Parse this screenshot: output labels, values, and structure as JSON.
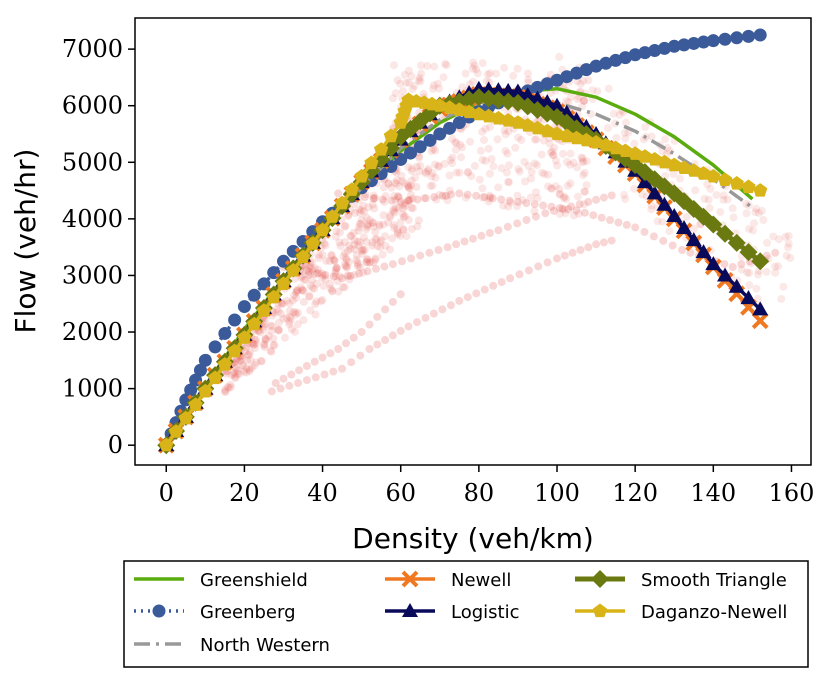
{
  "chart_data": {
    "type": "line",
    "xlabel": "Density (veh/km)",
    "ylabel": "Flow (veh/hr)",
    "xlim": [
      -8,
      165
    ],
    "ylim": [
      -350,
      7550
    ],
    "xticks": [
      0,
      20,
      40,
      60,
      80,
      100,
      120,
      140,
      160
    ],
    "yticks": [
      0,
      1000,
      2000,
      3000,
      4000,
      5000,
      6000,
      7000
    ],
    "scatter_color": "#e0463e",
    "series": [
      {
        "name": "Greenshield",
        "color": "#5aac0e",
        "style": "solid",
        "marker": "none",
        "x": [
          0,
          10,
          20,
          30,
          40,
          50,
          60,
          70,
          80,
          90,
          100,
          110,
          120,
          130,
          140,
          150
        ],
        "y": [
          0,
          1050,
          2050,
          2950,
          3800,
          4550,
          5200,
          5700,
          6050,
          6250,
          6300,
          6150,
          5850,
          5450,
          4950,
          4350
        ]
      },
      {
        "name": "Greenberg",
        "color": "#3a5a9a",
        "style": "dotted",
        "marker": "circle",
        "x": [
          0,
          5,
          10,
          20,
          30,
          40,
          50,
          60,
          70,
          80,
          90,
          100,
          110,
          120,
          130,
          140,
          152
        ],
        "y": [
          0,
          800,
          1500,
          2450,
          3250,
          3950,
          4550,
          5050,
          5500,
          5900,
          6200,
          6450,
          6700,
          6900,
          7050,
          7150,
          7250
        ]
      },
      {
        "name": "North Western",
        "color": "#999999",
        "style": "dashdot",
        "marker": "none",
        "x": [
          0,
          10,
          20,
          30,
          40,
          50,
          60,
          70,
          80,
          90,
          100,
          110,
          120,
          130,
          140,
          150
        ],
        "y": [
          0,
          950,
          1900,
          2850,
          3750,
          4550,
          5250,
          5750,
          6050,
          6150,
          6050,
          5850,
          5550,
          5150,
          4700,
          4200
        ]
      },
      {
        "name": "Newell",
        "color": "#f07820",
        "style": "solid",
        "marker": "x",
        "x": [
          0,
          10,
          20,
          30,
          40,
          50,
          60,
          70,
          80,
          90,
          100,
          110,
          120,
          130,
          140,
          152
        ],
        "y": [
          0,
          1000,
          1950,
          2900,
          3800,
          4650,
          5400,
          5950,
          6200,
          6150,
          5900,
          5400,
          4800,
          4000,
          3150,
          2200
        ]
      },
      {
        "name": "Logistic",
        "color": "#0a0a5a",
        "style": "solid",
        "marker": "triangle",
        "x": [
          0,
          10,
          20,
          30,
          40,
          50,
          60,
          70,
          80,
          90,
          100,
          110,
          120,
          130,
          140,
          152
        ],
        "y": [
          0,
          1000,
          1950,
          2900,
          3800,
          4650,
          5400,
          6000,
          6300,
          6250,
          6000,
          5500,
          4850,
          4050,
          3200,
          2400
        ]
      },
      {
        "name": "Smooth Triangle",
        "color": "#6b7a10",
        "style": "solid",
        "marker": "diamond",
        "x": [
          0,
          10,
          20,
          30,
          40,
          50,
          60,
          70,
          80,
          90,
          100,
          110,
          120,
          130,
          140,
          152
        ],
        "y": [
          0,
          1000,
          1950,
          2900,
          3800,
          4650,
          5450,
          6000,
          6150,
          6050,
          5800,
          5400,
          4950,
          4450,
          3900,
          3250
        ]
      },
      {
        "name": "Daganzo-Newell",
        "color": "#d8b418",
        "style": "solid",
        "marker": "pentagon",
        "x": [
          0,
          10,
          20,
          30,
          40,
          50,
          60,
          62,
          70,
          80,
          90,
          100,
          110,
          120,
          130,
          140,
          152
        ],
        "y": [
          0,
          950,
          1900,
          2850,
          3800,
          4750,
          5700,
          6100,
          6000,
          5850,
          5700,
          5500,
          5350,
          5150,
          4950,
          4750,
          4500
        ]
      }
    ],
    "legend": {
      "placement": "below plot",
      "columns": [
        [
          "Greenshield",
          "Greenberg",
          "North Western"
        ],
        [
          "Newell",
          "Logistic"
        ],
        [
          "Smooth Triangle",
          "Daganzo-Newell"
        ]
      ]
    }
  }
}
